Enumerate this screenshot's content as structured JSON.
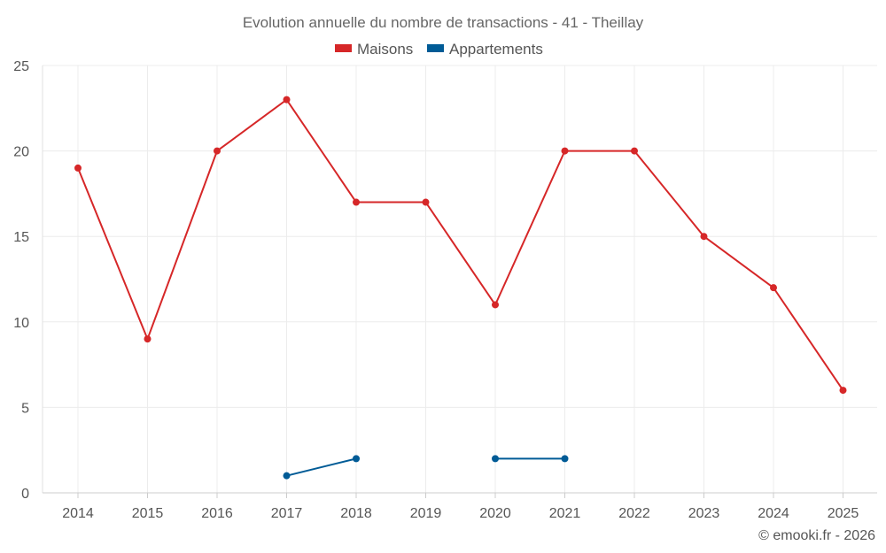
{
  "chart_data": {
    "type": "line",
    "title": "Evolution annuelle du nombre de transactions - 41 - Theillay",
    "categories": [
      "2014",
      "2015",
      "2016",
      "2017",
      "2018",
      "2019",
      "2020",
      "2021",
      "2022",
      "2023",
      "2024",
      "2025"
    ],
    "series": [
      {
        "name": "Maisons",
        "color": "#d62728",
        "values": [
          19,
          9,
          20,
          23,
          17,
          17,
          11,
          20,
          20,
          15,
          12,
          6
        ]
      },
      {
        "name": "Appartements",
        "color": "#005b96",
        "values": [
          null,
          null,
          null,
          1,
          2,
          null,
          2,
          2,
          null,
          null,
          null,
          null
        ]
      }
    ],
    "ylim": [
      0,
      25
    ],
    "yticks": [
      "0",
      "5",
      "10",
      "15",
      "20",
      "25"
    ],
    "xlabel": "",
    "ylabel": "",
    "grid": true,
    "legend_position": "top-center"
  },
  "credit": "© emooki.fr - 2026"
}
